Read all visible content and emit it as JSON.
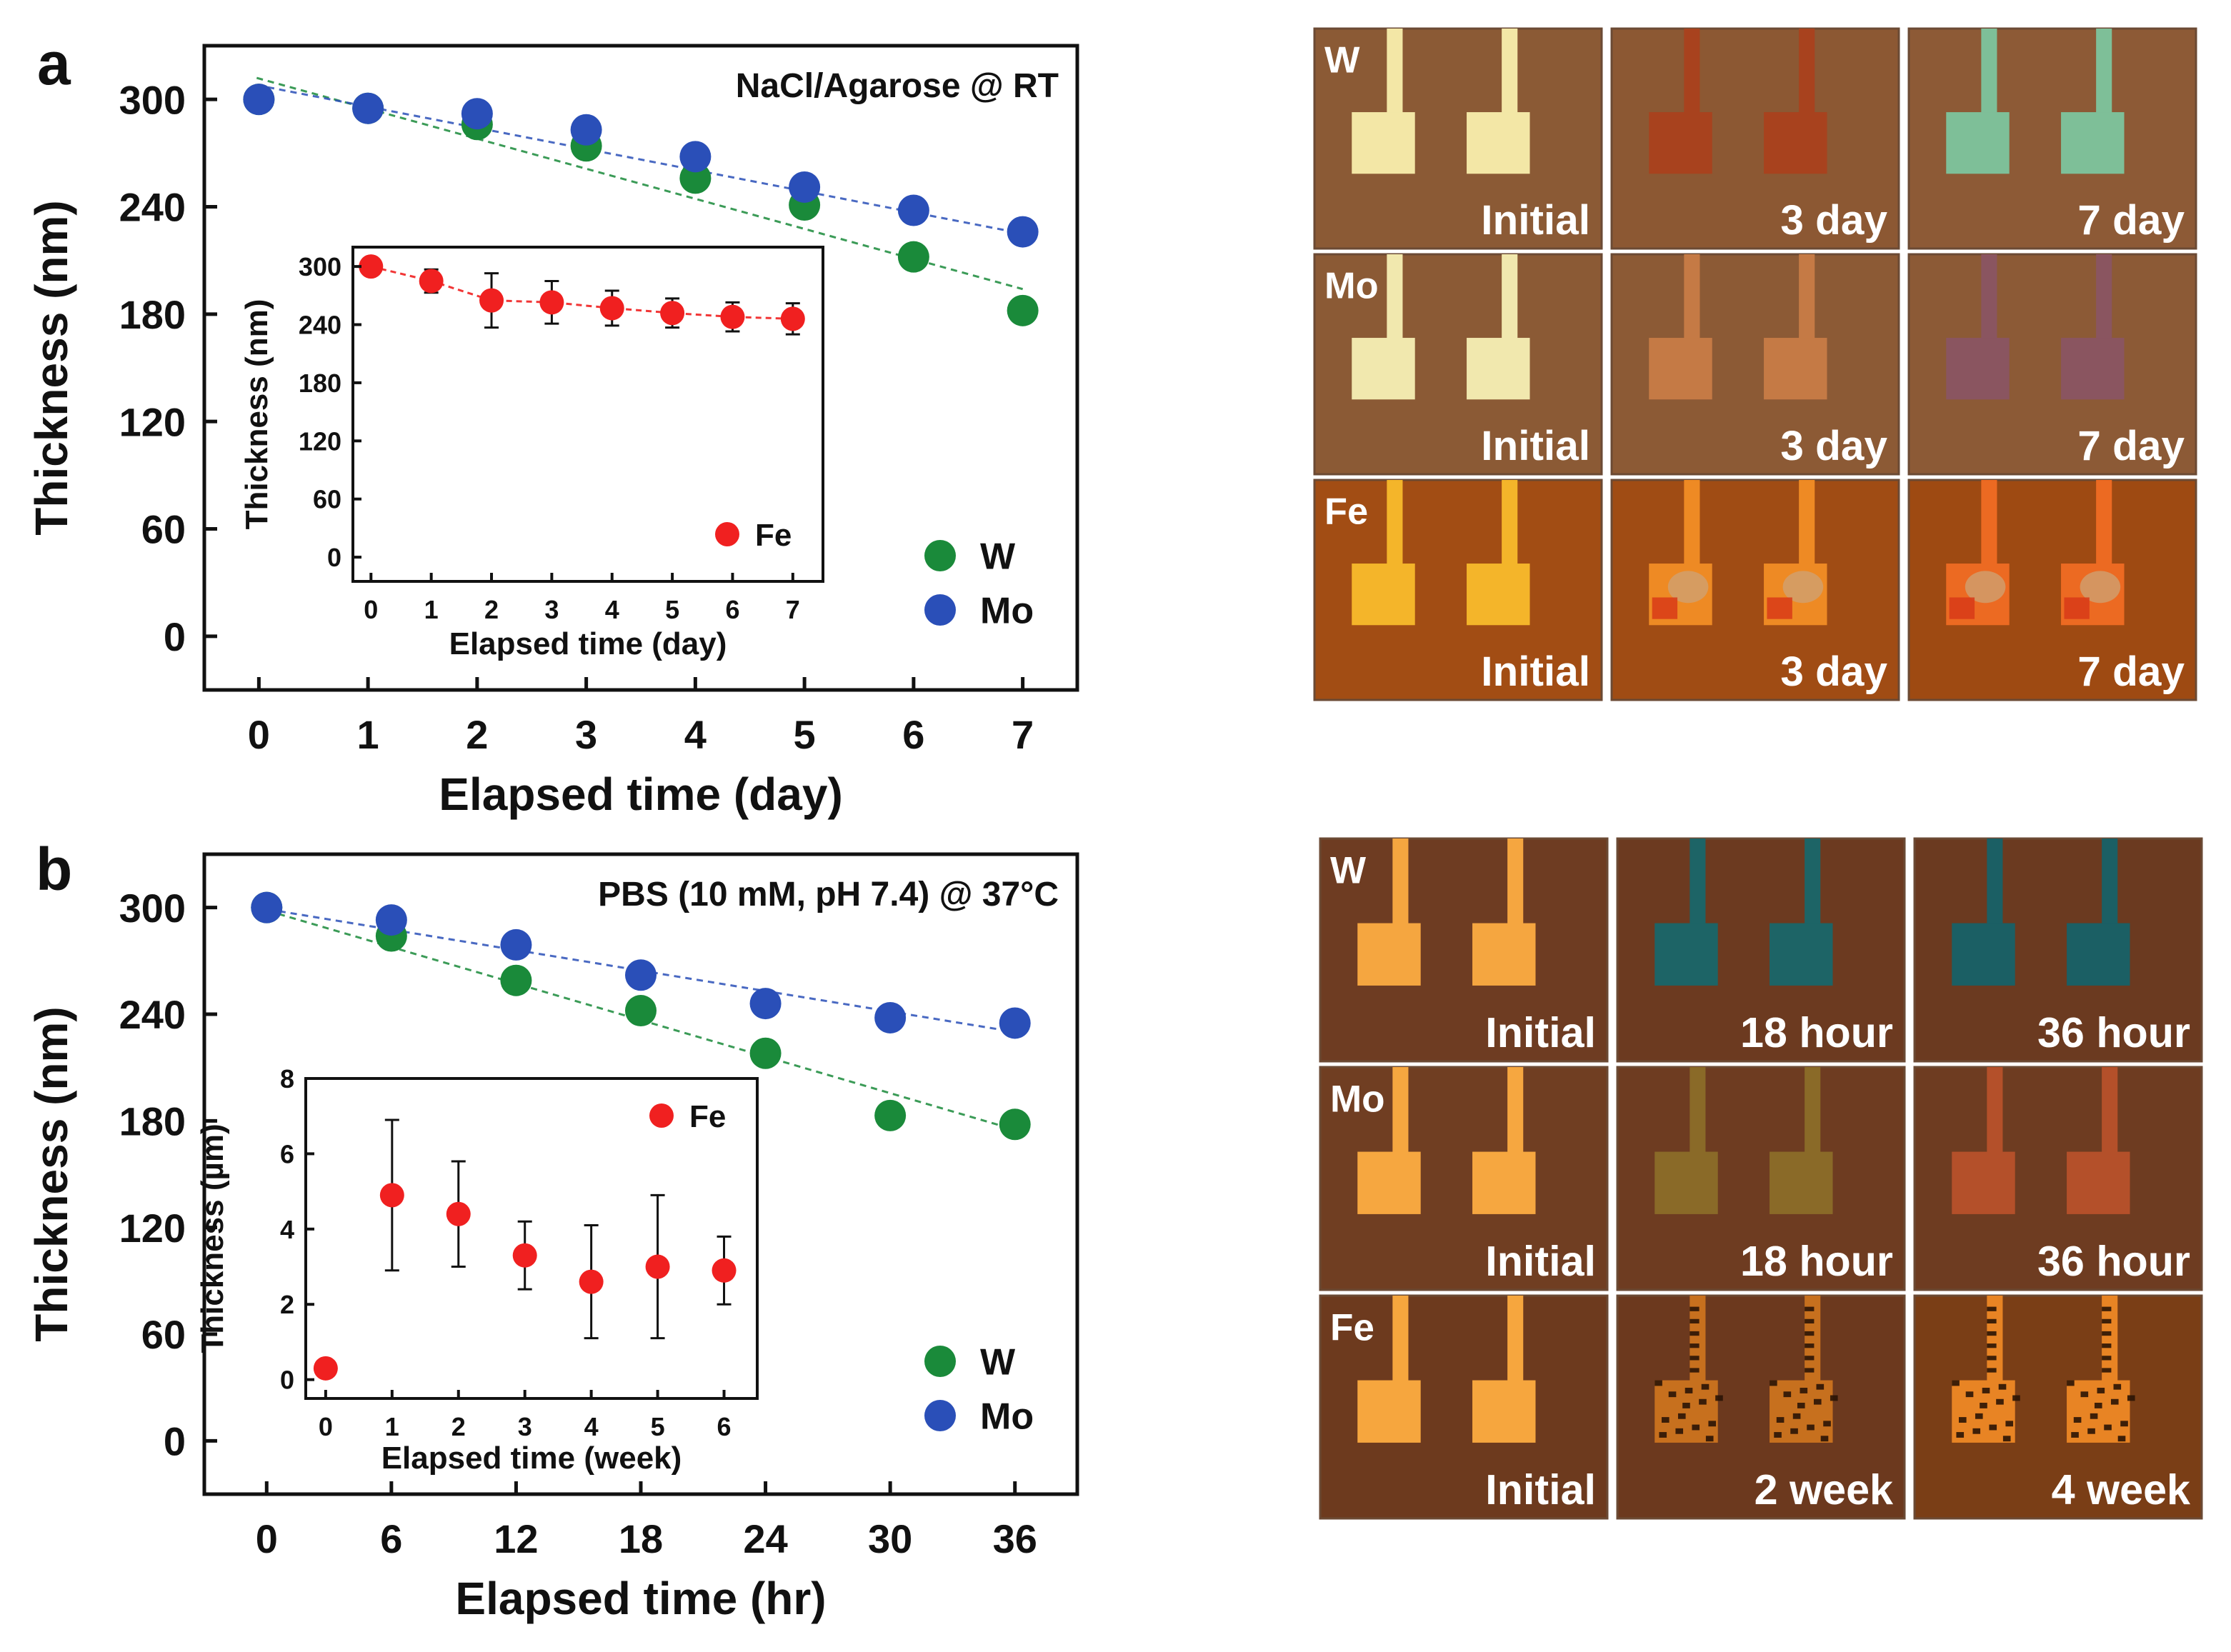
{
  "chart_data": [
    {
      "panel": "a",
      "type": "scatter",
      "title": "NaCl/Agarose @ RT",
      "xlabel": "Elapsed time (day)",
      "ylabel": "Thickness (nm)",
      "xlim": [
        -0.5,
        7.5
      ],
      "ylim": [
        -30,
        330
      ],
      "xticks": [
        0,
        1,
        2,
        3,
        4,
        5,
        6,
        7
      ],
      "yticks": [
        0,
        60,
        120,
        180,
        240,
        300
      ],
      "x": [
        0,
        1,
        2,
        3,
        4,
        5,
        6,
        7
      ],
      "legend_position": "bottom-right",
      "series": [
        {
          "name": "W",
          "color": "#1a8a3a",
          "values": [
            300,
            295,
            286,
            274,
            256,
            241,
            212,
            182
          ],
          "err": [
            0,
            0,
            3,
            4,
            4,
            5,
            4,
            4
          ],
          "trend": [
            312,
            194
          ]
        },
        {
          "name": "Mo",
          "color": "#2a4fb8",
          "values": [
            300,
            295,
            292,
            283,
            268,
            251,
            238,
            226
          ],
          "err": [
            0,
            4,
            4,
            4,
            4,
            4,
            3,
            3
          ],
          "trend": [
            308,
            225
          ]
        }
      ],
      "inset": {
        "type": "scatter",
        "xlabel": "Elapsed time (day)",
        "ylabel": "Thickness (nm)",
        "xlim": [
          -0.3,
          7.5
        ],
        "ylim": [
          -25,
          320
        ],
        "xticks": [
          0,
          1,
          2,
          3,
          4,
          5,
          6,
          7
        ],
        "yticks": [
          0,
          60,
          120,
          180,
          240,
          300
        ],
        "x": [
          0,
          1,
          2,
          3,
          4,
          5,
          6,
          7
        ],
        "legend_position": "bottom-right",
        "series": [
          {
            "name": "Fe",
            "color": "#f02020",
            "values": [
              300,
              285,
              265,
              263,
              257,
              252,
              248,
              246
            ],
            "err": [
              6,
              12,
              28,
              22,
              18,
              15,
              15,
              16
            ]
          }
        ]
      }
    },
    {
      "panel": "b",
      "type": "scatter",
      "title": "PBS (10 mM, pH 7.4) @ 37°C",
      "xlabel": "Elapsed time (hr)",
      "ylabel": "Thickness (nm)",
      "xlim": [
        -3,
        39
      ],
      "ylim": [
        -30,
        330
      ],
      "xticks": [
        0,
        6,
        12,
        18,
        24,
        30,
        36
      ],
      "yticks": [
        0,
        60,
        120,
        180,
        240,
        300
      ],
      "x": [
        0,
        6,
        12,
        18,
        24,
        30,
        36
      ],
      "legend_position": "bottom-right",
      "series": [
        {
          "name": "W",
          "color": "#1a8a3a",
          "values": [
            300,
            284,
            259,
            242,
            218,
            183,
            178
          ],
          "err": [
            0,
            4,
            5,
            4,
            5,
            4,
            4
          ],
          "trend": [
            300,
            175
          ]
        },
        {
          "name": "Mo",
          "color": "#2a4fb8",
          "values": [
            300,
            293,
            279,
            262,
            246,
            238,
            235
          ],
          "err": [
            0,
            5,
            5,
            4,
            4,
            4,
            4
          ],
          "trend": [
            300,
            230
          ]
        }
      ],
      "inset": {
        "type": "scatter",
        "xlabel": "Elapsed time (week)",
        "ylabel": "Thickness (µm)",
        "xlim": [
          -0.3,
          6.5
        ],
        "ylim": [
          -0.5,
          8
        ],
        "xticks": [
          0,
          1,
          2,
          3,
          4,
          5,
          6
        ],
        "yticks": [
          0,
          2,
          4,
          6,
          8
        ],
        "x": [
          0,
          1,
          2,
          3,
          4,
          5,
          6
        ],
        "legend_position": "top-right",
        "series": [
          {
            "name": "Fe",
            "color": "#f02020",
            "values": [
              0.3,
              4.9,
              4.4,
              3.3,
              2.6,
              3.0,
              2.9
            ],
            "err": [
              0.1,
              2.0,
              1.4,
              0.9,
              1.5,
              1.9,
              0.9
            ]
          }
        ]
      }
    }
  ],
  "micrographs": [
    {
      "panel": "a",
      "rows": [
        {
          "material": "W",
          "tiles": [
            {
              "label": "Initial",
              "bg": "#8b5a35",
              "pad": "#f3e7a6",
              "style": "solid"
            },
            {
              "label": "3 day",
              "bg": "#8c5833",
              "pad": "#a8421e",
              "style": "solid"
            },
            {
              "label": "7 day",
              "bg": "#8d5a36",
              "pad": "#7ebf98",
              "style": "solid"
            }
          ]
        },
        {
          "material": "Mo",
          "tiles": [
            {
              "label": "Initial",
              "bg": "#8b5a35",
              "pad": "#f1e8ae",
              "style": "solid"
            },
            {
              "label": "3 day",
              "bg": "#8c5a35",
              "pad": "#c57a45",
              "style": "solid"
            },
            {
              "label": "7 day",
              "bg": "#8c5a36",
              "pad": "#8a5560",
              "style": "solid"
            }
          ]
        },
        {
          "material": "Fe",
          "tiles": [
            {
              "label": "Initial",
              "bg": "#a24d14",
              "pad": "#f4b52a",
              "style": "solid"
            },
            {
              "label": "3 day",
              "bg": "#a04c14",
              "pad": "#ee8a24",
              "style": "corroded"
            },
            {
              "label": "7 day",
              "bg": "#9e4a12",
              "pad": "#ec6a22",
              "style": "corroded"
            }
          ]
        }
      ]
    },
    {
      "panel": "b",
      "rows": [
        {
          "material": "W",
          "tiles": [
            {
              "label": "Initial",
              "bg": "#6e3c22",
              "pad": "#f5a640",
              "style": "solid"
            },
            {
              "label": "18 hour",
              "bg": "#6c3a20",
              "pad": "#1d6466",
              "style": "solid"
            },
            {
              "label": "36 hour",
              "bg": "#6b3a20",
              "pad": "#1b5f64",
              "style": "solid"
            }
          ]
        },
        {
          "material": "Mo",
          "tiles": [
            {
              "label": "Initial",
              "bg": "#703e22",
              "pad": "#f6a740",
              "style": "solid"
            },
            {
              "label": "18 hour",
              "bg": "#6e3c21",
              "pad": "#8a6a28",
              "style": "solid"
            },
            {
              "label": "36 hour",
              "bg": "#6e3c21",
              "pad": "#b4502a",
              "style": "solid"
            }
          ]
        },
        {
          "material": "Fe",
          "tiles": [
            {
              "label": "Initial",
              "bg": "#6d3a1e",
              "pad": "#f6a63e",
              "style": "solid"
            },
            {
              "label": "2 week",
              "bg": "#6c391e",
              "pad": "#c7701e",
              "style": "flake"
            },
            {
              "label": "4 week",
              "bg": "#7a3e16",
              "pad": "#e88424",
              "style": "flake"
            }
          ]
        }
      ]
    }
  ]
}
